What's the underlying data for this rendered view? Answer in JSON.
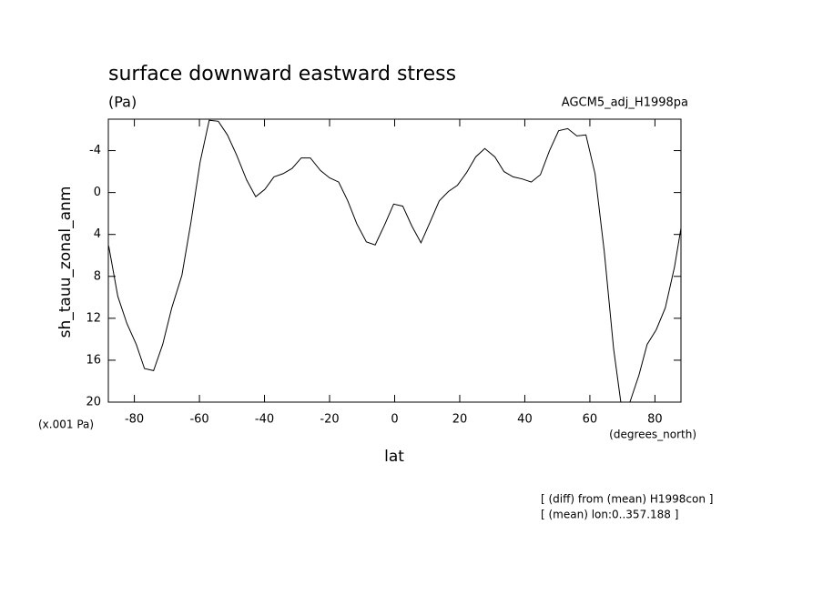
{
  "chart_data": {
    "type": "line",
    "title": "surface downward eastward stress",
    "subtitle": "(Pa)",
    "annotation_right": "AGCM5_adj_H1998pa",
    "ylabel": "sh_tauu_zonal_anm",
    "yunit": "(x.001 Pa)",
    "xlabel": "lat",
    "xunit": "(degrees_north)",
    "notes": [
      "[ (diff) from (mean) H1998con ]",
      "[ (mean) lon:0..357.188 ]"
    ],
    "xlim": [
      -88,
      88
    ],
    "xticks": [
      -80,
      -60,
      -40,
      -20,
      0,
      20,
      40,
      60,
      80
    ],
    "ylim": [
      20,
      -7
    ],
    "yticks": [
      -4,
      0,
      4,
      8,
      12,
      16,
      20
    ],
    "series": [
      {
        "color": "#000000",
        "x": [
          -87.9,
          -85.1,
          -82.3,
          -79.4,
          -76.9,
          -74.1,
          -71.3,
          -68.5,
          -65.4,
          -62.6,
          -59.8,
          -57.0,
          -54.2,
          -51.4,
          -48.6,
          -45.5,
          -42.7,
          -39.9,
          -37.1,
          -34.3,
          -31.5,
          -28.7,
          -25.9,
          -22.8,
          -20.0,
          -17.2,
          -14.4,
          -11.6,
          -8.7,
          -6.0,
          -3.1,
          -0.3,
          2.5,
          5.3,
          8.1,
          10.9,
          13.7,
          16.5,
          19.3,
          22.1,
          24.9,
          27.7,
          30.8,
          33.6,
          36.4,
          39.2,
          42.0,
          44.8,
          47.6,
          50.4,
          53.2,
          56.0,
          58.8,
          61.6,
          64.4,
          67.3,
          69.5,
          72.3,
          75.1,
          77.6,
          80.4,
          83.2,
          86.0,
          88.0
        ],
        "values": [
          5.1,
          9.9,
          12.5,
          14.5,
          16.8,
          17.0,
          14.5,
          11.0,
          7.9,
          2.8,
          -2.9,
          -6.9,
          -6.8,
          -5.5,
          -3.6,
          -1.2,
          0.4,
          -0.3,
          -1.5,
          -1.8,
          -2.3,
          -3.3,
          -3.3,
          -2.1,
          -1.4,
          -1.0,
          0.8,
          3.0,
          4.7,
          5.0,
          3.1,
          1.1,
          1.3,
          3.2,
          4.8,
          2.8,
          0.8,
          -0.1,
          -0.7,
          -1.9,
          -3.4,
          -4.2,
          -3.4,
          -2.0,
          -1.5,
          -1.3,
          -1.0,
          -1.7,
          -4.0,
          -5.9,
          -6.1,
          -5.4,
          -5.5,
          -1.8,
          5.6,
          14.9,
          20,
          20,
          17.4,
          14.5,
          13.1,
          11.0,
          7.1,
          3.4
        ]
      }
    ]
  }
}
